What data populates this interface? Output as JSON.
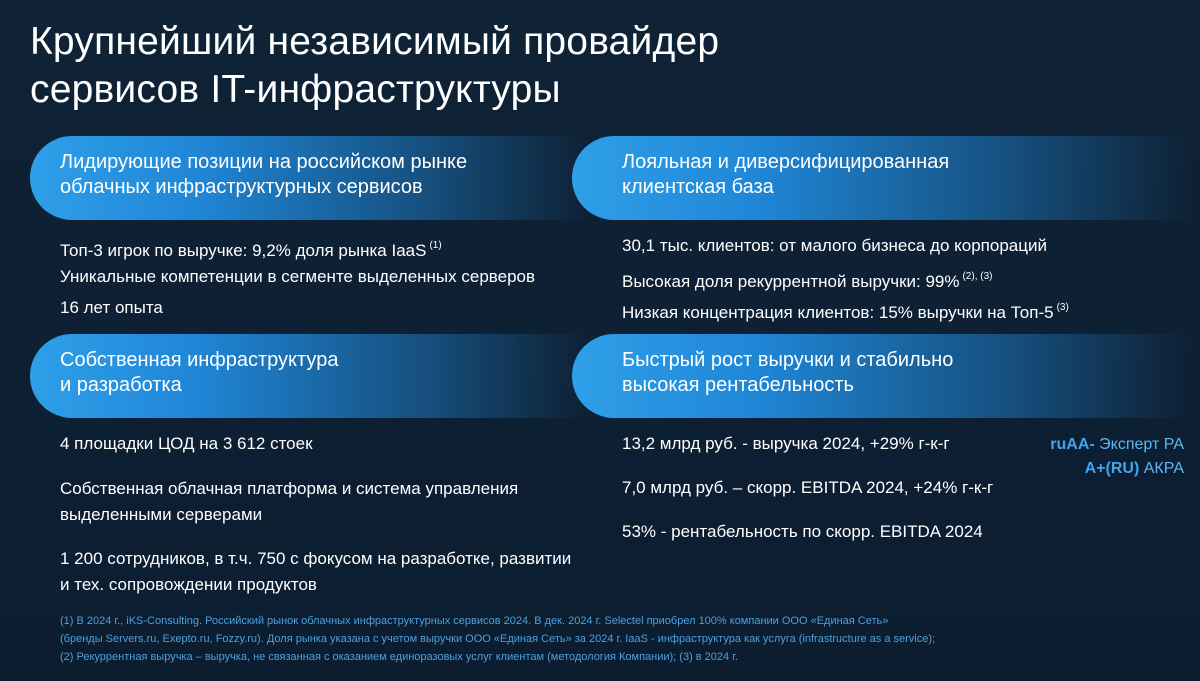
{
  "title": {
    "line1": "Крупнейший независимый провайдер",
    "line2": "сервисов IT-инфраструктуры"
  },
  "blocks": {
    "market": {
      "header": [
        "Лидирующие позиции на российском рынке",
        "облачных инфраструктурных сервисов"
      ],
      "items": [
        {
          "text": "Топ-3 игрок по выручке: 9,2% доля рынка IaaS",
          "note": "(1)"
        },
        {
          "text": "Уникальные компетенции в сегменте выделенных серверов",
          "note": ""
        },
        {
          "text": "16 лет опыта",
          "note": ""
        }
      ]
    },
    "clients": {
      "header": [
        "Лояльная и диверсифицированная",
        "клиентская база"
      ],
      "items": [
        {
          "text": "30,1 тыс. клиентов: от малого бизнеса до корпораций",
          "note": ""
        },
        {
          "text": "Высокая доля рекуррентной выручки: 99%",
          "note": "(2), (3)"
        },
        {
          "text": "Низкая концентрация клиентов: 15% выручки на Топ-5",
          "note": "(3)"
        }
      ]
    },
    "infra": {
      "header": [
        "Собственная инфраструктура",
        "и разработка"
      ],
      "items": [
        {
          "lines": [
            "4 площадки ЦОД на 3 612 стоек"
          ]
        },
        {
          "lines": [
            "Собственная облачная платформа и система управления",
            "выделенными серверами"
          ]
        },
        {
          "lines": [
            "1 200 сотрудников, в т.ч.  750 с фокусом на разработке, развитии",
            "и тех. сопровождении продуктов"
          ]
        }
      ]
    },
    "growth": {
      "header": [
        "Быстрый рост выручки и стабильно",
        "высокая рентабельность"
      ],
      "items": [
        {
          "text": "13,2 млрд руб. - выручка 2024, +29% г-к-г"
        },
        {
          "text": "7,0 млрд руб. – скорр. EBITDA 2024, +24% г-к-г"
        },
        {
          "text": "53% - рентабельность по скорр. EBITDA 2024"
        }
      ]
    }
  },
  "ratings": [
    {
      "grade": "ruAA-",
      "agency": "Эксперт РА"
    },
    {
      "grade": "A+(RU)",
      "agency": "АКРА"
    }
  ],
  "footnotes": [
    "(1) В 2024 г., iKS-Consulting. Российский рынок облачных инфраструктурных сервисов 2024. В дек. 2024 г. Selectel приобрел 100% компании ООО «Единая Сеть»",
    "(бренды Servers.ru, Exepto.ru, Fozzy.ru). Доля рынка указана с учетом выручки ООО «Единая Сеть» за 2024 г. IaaS - инфраструктура как услуга (infrastructure as a service);",
    "(2) Рекуррентная выручка – выручка, не связанная с оказанием единоразовых услуг клиентам (методология Компании); (3) в 2024 г."
  ]
}
